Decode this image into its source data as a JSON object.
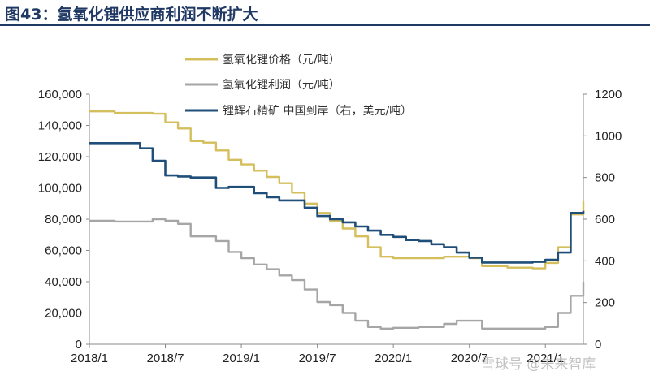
{
  "title": "图43：氢氧化锂供应商利润不断扩大",
  "watermark": "雪球号 @未来智库",
  "colors": {
    "price": "#d4bf5c",
    "profit": "#a6a6a6",
    "ore": "#1f4e79",
    "title": "#1f3864"
  },
  "chart_data": {
    "type": "line",
    "title": "图43：氢氧化锂供应商利润不断扩大",
    "x_ticks": [
      "2018/1",
      "2018/7",
      "2019/1",
      "2019/7",
      "2020/1",
      "2020/7",
      "2021/1"
    ],
    "x_range": [
      "2018/1",
      "2021/4"
    ],
    "y_left": {
      "ticks": [
        "0",
        "20,000",
        "40,000",
        "60,000",
        "80,000",
        "100,000",
        "120,000",
        "140,000",
        "160,000"
      ],
      "ylim": [
        0,
        160000
      ]
    },
    "y_right": {
      "ticks": [
        "0",
        "200",
        "400",
        "600",
        "800",
        "1000",
        "1200"
      ],
      "ylim": [
        0,
        1200
      ]
    },
    "legend_position": "top-center",
    "grid": false,
    "series": [
      {
        "name": "氢氧化锂价格（元/吨）",
        "axis": "left",
        "color": "#d4bf5c",
        "points": [
          [
            "2018/1",
            149000
          ],
          [
            "2018/3",
            148000
          ],
          [
            "2018/6",
            147500
          ],
          [
            "2018/7",
            142000
          ],
          [
            "2018/8",
            138000
          ],
          [
            "2018/9",
            130000
          ],
          [
            "2018/10",
            129000
          ],
          [
            "2018/11",
            124000
          ],
          [
            "2018/12",
            118000
          ],
          [
            "2019/1",
            115000
          ],
          [
            "2019/2",
            111000
          ],
          [
            "2019/3",
            107000
          ],
          [
            "2019/4",
            103000
          ],
          [
            "2019/5",
            97000
          ],
          [
            "2019/6",
            90000
          ],
          [
            "2019/7",
            84000
          ],
          [
            "2019/8",
            79000
          ],
          [
            "2019/9",
            74000
          ],
          [
            "2019/10",
            69000
          ],
          [
            "2019/11",
            62000
          ],
          [
            "2019/12",
            56000
          ],
          [
            "2020/1",
            55000
          ],
          [
            "2020/3",
            55000
          ],
          [
            "2020/5",
            56000
          ],
          [
            "2020/7",
            55000
          ],
          [
            "2020/8",
            50000
          ],
          [
            "2020/10",
            49000
          ],
          [
            "2020/12",
            48500
          ],
          [
            "2021/1",
            52000
          ],
          [
            "2021/2",
            62000
          ],
          [
            "2021/3",
            83000
          ],
          [
            "2021/4",
            92000
          ]
        ]
      },
      {
        "name": "氢氧化锂利润（元/吨）",
        "axis": "left",
        "color": "#a6a6a6",
        "points": [
          [
            "2018/1",
            79000
          ],
          [
            "2018/3",
            78500
          ],
          [
            "2018/5",
            78500
          ],
          [
            "2018/6",
            80000
          ],
          [
            "2018/7",
            79000
          ],
          [
            "2018/8",
            77000
          ],
          [
            "2018/9",
            69000
          ],
          [
            "2018/10",
            69000
          ],
          [
            "2018/11",
            66000
          ],
          [
            "2018/12",
            59000
          ],
          [
            "2019/1",
            55000
          ],
          [
            "2019/2",
            51000
          ],
          [
            "2019/3",
            48000
          ],
          [
            "2019/4",
            44000
          ],
          [
            "2019/5",
            41000
          ],
          [
            "2019/6",
            35000
          ],
          [
            "2019/7",
            27000
          ],
          [
            "2019/8",
            25000
          ],
          [
            "2019/9",
            20000
          ],
          [
            "2019/10",
            15000
          ],
          [
            "2019/11",
            11000
          ],
          [
            "2019/12",
            10000
          ],
          [
            "2020/1",
            10500
          ],
          [
            "2020/3",
            11000
          ],
          [
            "2020/5",
            13000
          ],
          [
            "2020/6",
            15000
          ],
          [
            "2020/7",
            15000
          ],
          [
            "2020/8",
            10000
          ],
          [
            "2020/10",
            10000
          ],
          [
            "2020/12",
            10000
          ],
          [
            "2021/1",
            11000
          ],
          [
            "2021/2",
            20000
          ],
          [
            "2021/3",
            31000
          ],
          [
            "2021/4",
            40000
          ]
        ]
      },
      {
        "name": "锂辉石精矿 中国到岸（右，美元/吨）",
        "axis": "right",
        "color": "#1f4e79",
        "points": [
          [
            "2018/1",
            965
          ],
          [
            "2018/4",
            965
          ],
          [
            "2018/5",
            940
          ],
          [
            "2018/6",
            880
          ],
          [
            "2018/7",
            810
          ],
          [
            "2018/8",
            805
          ],
          [
            "2018/9",
            800
          ],
          [
            "2018/10",
            800
          ],
          [
            "2018/11",
            750
          ],
          [
            "2018/12",
            755
          ],
          [
            "2019/1",
            755
          ],
          [
            "2019/2",
            725
          ],
          [
            "2019/3",
            705
          ],
          [
            "2019/4",
            690
          ],
          [
            "2019/5",
            690
          ],
          [
            "2019/6",
            655
          ],
          [
            "2019/7",
            615
          ],
          [
            "2019/8",
            600
          ],
          [
            "2019/9",
            585
          ],
          [
            "2019/10",
            565
          ],
          [
            "2019/11",
            545
          ],
          [
            "2019/12",
            525
          ],
          [
            "2020/1",
            515
          ],
          [
            "2020/2",
            500
          ],
          [
            "2020/3",
            495
          ],
          [
            "2020/4",
            480
          ],
          [
            "2020/5",
            465
          ],
          [
            "2020/6",
            440
          ],
          [
            "2020/7",
            415
          ],
          [
            "2020/8",
            392
          ],
          [
            "2020/10",
            392
          ],
          [
            "2020/12",
            395
          ],
          [
            "2021/1",
            405
          ],
          [
            "2021/2",
            440
          ],
          [
            "2021/3",
            630
          ],
          [
            "2021/4",
            640
          ]
        ]
      }
    ]
  }
}
